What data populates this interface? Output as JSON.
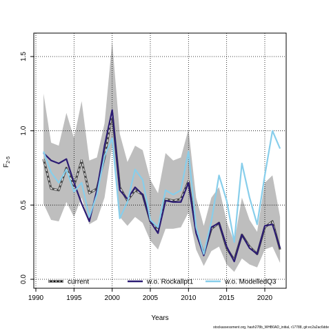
{
  "chart_data": {
    "type": "line",
    "xlabel": "Years",
    "ylabel": "F",
    "ylabel_subscript": "2-5",
    "xlim": [
      1990,
      2022
    ],
    "ylim": [
      0,
      1.6
    ],
    "grid": true,
    "xticks": [
      1990,
      1995,
      2000,
      2005,
      2010,
      2015,
      2020
    ],
    "yticks": [
      0.0,
      0.5,
      1.0,
      1.5
    ],
    "ytick_labels": [
      "0.0",
      "0.5",
      "1.0",
      "1.5"
    ],
    "x": [
      1991,
      1992,
      1993,
      1994,
      1995,
      1996,
      1997,
      1998,
      1999,
      2000,
      2001,
      2002,
      2003,
      2004,
      2005,
      2006,
      2007,
      2008,
      2009,
      2010,
      2011,
      2012,
      2013,
      2014,
      2015,
      2016,
      2017,
      2018,
      2019,
      2020,
      2021,
      2022
    ],
    "band": {
      "color": "#bebebe",
      "upper": [
        1.25,
        0.92,
        0.9,
        1.12,
        0.95,
        1.2,
        0.8,
        0.82,
        1.05,
        1.6,
        0.98,
        0.79,
        0.9,
        0.87,
        0.67,
        0.58,
        0.85,
        0.8,
        0.82,
        1.01,
        0.55,
        0.36,
        0.55,
        0.62,
        0.39,
        0.25,
        0.55,
        0.4,
        0.32,
        0.65,
        0.7,
        0.42
      ],
      "lower": [
        0.51,
        0.4,
        0.39,
        0.52,
        0.42,
        0.55,
        0.37,
        0.4,
        0.55,
        0.9,
        0.42,
        0.36,
        0.42,
        0.38,
        0.26,
        0.2,
        0.34,
        0.34,
        0.35,
        0.45,
        0.2,
        0.09,
        0.19,
        0.22,
        0.1,
        0.05,
        0.14,
        0.1,
        0.08,
        0.2,
        0.22,
        0.11
      ]
    },
    "series": [
      {
        "name": "current",
        "color": "#000000",
        "dashed": true,
        "values": [
          0.81,
          0.61,
          0.6,
          0.75,
          0.63,
          0.8,
          0.58,
          0.61,
          0.82,
          1.12,
          0.62,
          0.53,
          0.6,
          0.57,
          0.39,
          0.33,
          0.54,
          0.53,
          0.54,
          0.66,
          0.33,
          0.17,
          0.34,
          0.38,
          0.21,
          0.13,
          0.3,
          0.22,
          0.17,
          0.35,
          0.39,
          0.2
        ]
      },
      {
        "name": "w.o. Rockallpt1",
        "color": "#2b1b73",
        "dashed": false,
        "values": [
          0.85,
          0.8,
          0.78,
          0.81,
          0.65,
          0.51,
          0.39,
          0.6,
          0.9,
          1.14,
          0.6,
          0.54,
          0.62,
          0.57,
          0.39,
          0.31,
          0.53,
          0.52,
          0.52,
          0.65,
          0.31,
          0.16,
          0.35,
          0.38,
          0.22,
          0.12,
          0.3,
          0.21,
          0.17,
          0.36,
          0.37,
          0.21
        ]
      },
      {
        "name": "w.o. ModelledQ3",
        "color": "#87ceeb",
        "dashed": false,
        "values": [
          0.86,
          0.72,
          0.65,
          0.74,
          0.59,
          0.65,
          0.42,
          0.57,
          0.83,
          0.95,
          0.41,
          0.52,
          0.74,
          0.67,
          0.4,
          0.35,
          0.6,
          0.57,
          0.6,
          0.86,
          0.35,
          0.17,
          0.39,
          0.7,
          0.53,
          0.25,
          0.78,
          0.55,
          0.37,
          0.7,
          1.0,
          0.88
        ]
      }
    ],
    "legend_placement": "bottom"
  },
  "footer": "stockassessment.org, hash278b_WHB0AD_initial, r17788, git:ec2a2ac6dde"
}
